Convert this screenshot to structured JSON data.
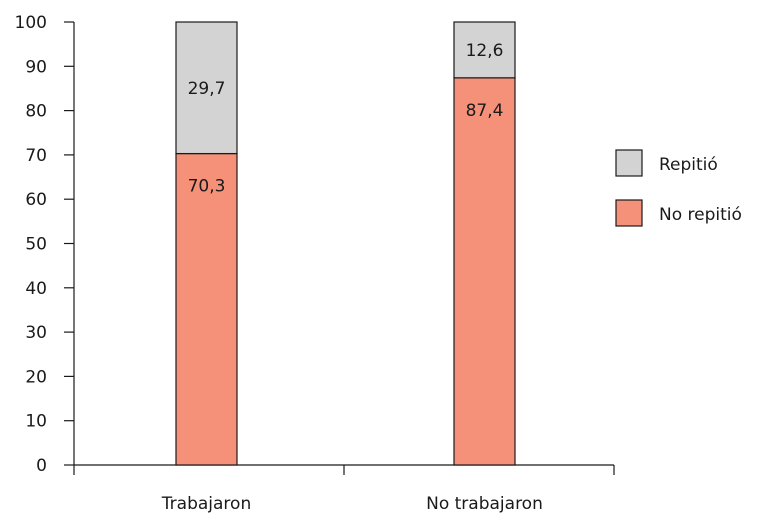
{
  "chart_data": {
    "type": "bar",
    "stacked": true,
    "categories": [
      "Trabajaron",
      "No trabajaron"
    ],
    "series": [
      {
        "name": "No repitió",
        "values": [
          70.3,
          87.4
        ],
        "labels": [
          "70,3",
          "87,4"
        ],
        "color": "#f59079"
      },
      {
        "name": "Repitió",
        "values": [
          29.7,
          12.6
        ],
        "labels": [
          "29,7",
          "12,6"
        ],
        "color": "#d3d3d3"
      }
    ],
    "yticks": [
      "0",
      "10",
      "20",
      "30",
      "40",
      "50",
      "60",
      "70",
      "80",
      "90",
      "100"
    ],
    "ylim": [
      0,
      100
    ],
    "grid": false,
    "legend_position": "right",
    "legend_order": [
      "Repitió",
      "No repitió"
    ]
  }
}
